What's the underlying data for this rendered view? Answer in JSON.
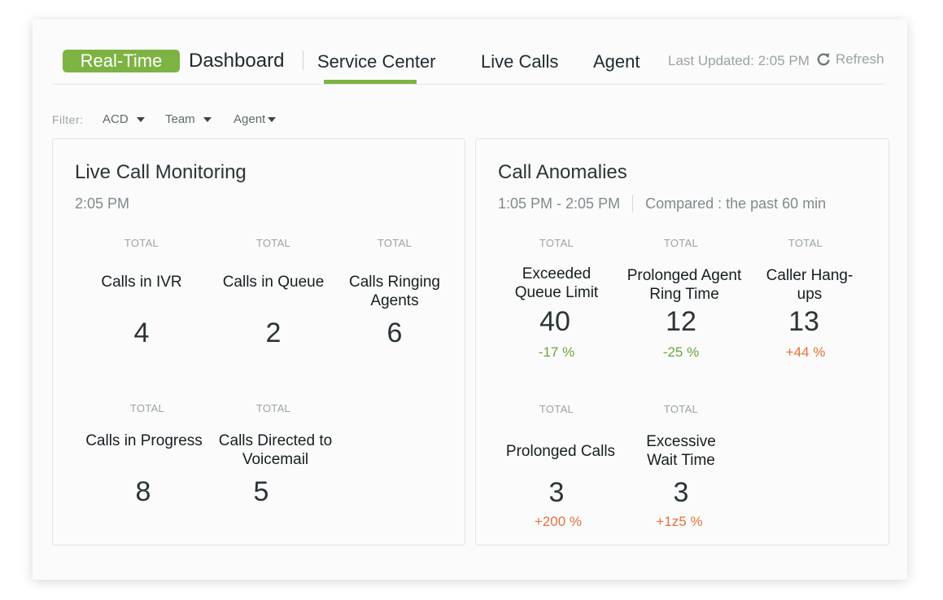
{
  "header": {
    "badge": "Real-Time",
    "title": "Dashboard",
    "tabs": [
      {
        "label": "Service Center",
        "active": true
      },
      {
        "label": "Live Calls",
        "active": false
      },
      {
        "label": "Agent",
        "active": false
      }
    ],
    "last_updated": "Last Updated: 2:05 PM",
    "refresh_label": "Refresh",
    "refresh_icon": "refresh-icon"
  },
  "filters": {
    "label": "Filter:",
    "items": [
      {
        "label": "ACD",
        "icon": "caret-down-icon"
      },
      {
        "label": "Team",
        "icon": "caret-down-icon"
      },
      {
        "label": "Agent",
        "icon": "caret-down-icon"
      }
    ]
  },
  "live_monitoring": {
    "title": "Live Call Monitoring",
    "time": "2:05 PM",
    "metrics": [
      {
        "total": "TOTAL",
        "label": "Calls in IVR",
        "value": "4"
      },
      {
        "total": "TOTAL",
        "label": "Calls in Queue",
        "value": "2"
      },
      {
        "total": "TOTAL",
        "label": "Calls Ringing Agents",
        "value": "6"
      },
      {
        "total": "TOTAL",
        "label": "Calls in Progress",
        "value": "8"
      },
      {
        "total": "TOTAL",
        "label": "Calls Directed to Voicemail",
        "value": "5"
      }
    ]
  },
  "anomalies": {
    "title": "Call Anomalies",
    "range": "1:05 PM - 2:05 PM",
    "compared": "Compared : the past 60 min",
    "metrics": [
      {
        "total": "TOTAL",
        "label": "Exceeded Queue Limit",
        "value": "40",
        "change": "-17 %"
      },
      {
        "total": "TOTAL",
        "label": "Prolonged Agent Ring Time",
        "value": "12",
        "change": "-25 %"
      },
      {
        "total": "TOTAL",
        "label": "Caller Hang-ups",
        "value": "13",
        "change": "+44 %"
      },
      {
        "total": "TOTAL",
        "label": "Prolonged Calls",
        "value": "3",
        "change": "+200 %"
      },
      {
        "total": "TOTAL",
        "label": "Excessive Wait Time",
        "value": "3",
        "change": "+1z5 %"
      }
    ]
  },
  "colors": {
    "accent": "#7cb342",
    "negative_change": "#6ba43a",
    "positive_change": "#e8703a",
    "muted": "#9aa3a6"
  }
}
